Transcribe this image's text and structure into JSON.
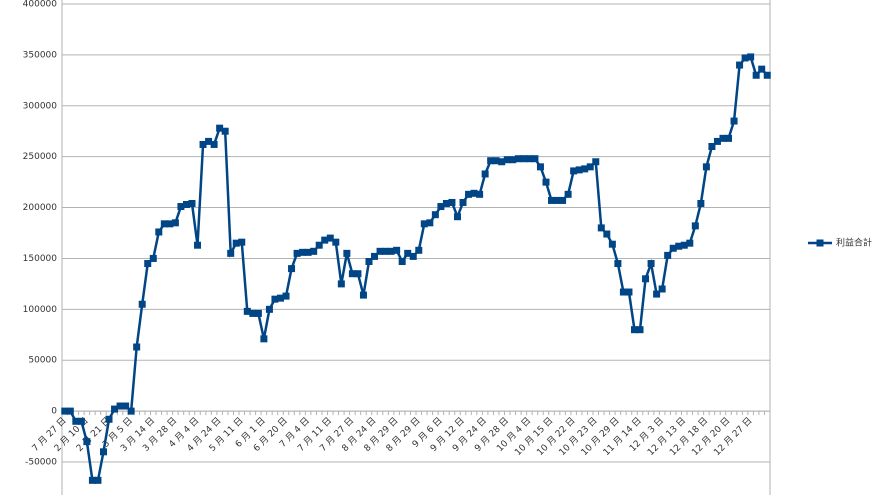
{
  "chart_data": {
    "type": "line",
    "categories": [
      "7 月 27 日",
      null,
      null,
      null,
      "2 月 10 日",
      null,
      null,
      null,
      "2 月 21 日",
      null,
      null,
      null,
      "3 月 5 日",
      null,
      null,
      null,
      "3 月 14 日",
      null,
      null,
      null,
      "3 月 28 日",
      null,
      null,
      null,
      "4 月 4 日",
      null,
      null,
      null,
      "4 月 24 日",
      null,
      null,
      null,
      "5 月 11 日",
      null,
      null,
      null,
      "6 月 1 日",
      null,
      null,
      null,
      "6 月 20 日",
      null,
      null,
      null,
      "7 月 4 日",
      null,
      null,
      null,
      "7 月 11 日",
      null,
      null,
      null,
      "7 月 27 日",
      null,
      null,
      null,
      "8 月 24 日",
      null,
      null,
      null,
      "8 月 29 日",
      null,
      null,
      null,
      "8 月 29 日",
      null,
      null,
      null,
      "9 月 6 日",
      null,
      null,
      null,
      "9 月 12 日",
      null,
      null,
      null,
      "9 月 24 日",
      null,
      null,
      null,
      "9 月 28 日",
      null,
      null,
      null,
      "10 月 4 日",
      null,
      null,
      null,
      "10 月 15 日",
      null,
      null,
      null,
      "10 月 22 日",
      null,
      null,
      null,
      "10 月 23 日",
      null,
      null,
      null,
      "10 月 29 日",
      null,
      null,
      null,
      "11 月 14 日",
      null,
      null,
      null,
      "12 月 3 日",
      null,
      null,
      null,
      "12 月 13 日",
      null,
      null,
      null,
      "12 月 18 日",
      null,
      null,
      null,
      "12 月 20 日",
      null,
      null,
      null,
      "12 月 27 日",
      null,
      null,
      null
    ],
    "series": [
      {
        "name": "利益合計",
        "color": "#004586",
        "values": [
          0,
          0,
          -10000,
          -10000,
          -30000,
          -68000,
          -68000,
          -40000,
          -8000,
          2000,
          5000,
          5000,
          0,
          63000,
          105000,
          145000,
          150000,
          176000,
          184000,
          184000,
          185000,
          201000,
          203000,
          204000,
          163000,
          262000,
          265000,
          262000,
          278000,
          275000,
          155000,
          165000,
          166000,
          98000,
          96000,
          96000,
          71000,
          100000,
          110000,
          111000,
          113000,
          140000,
          155000,
          156000,
          156000,
          157000,
          163000,
          168000,
          170000,
          166000,
          125000,
          155000,
          135000,
          135000,
          114000,
          147000,
          152000,
          157000,
          157000,
          157000,
          158000,
          147000,
          155000,
          152000,
          158000,
          184000,
          185000,
          193000,
          201000,
          204000,
          205000,
          191000,
          205000,
          213000,
          214000,
          213000,
          233000,
          246000,
          246000,
          245000,
          247000,
          247000,
          248000,
          248000,
          248000,
          248000,
          240000,
          225000,
          207000,
          207000,
          207000,
          213000,
          236000,
          237000,
          238000,
          240000,
          245000,
          180000,
          174000,
          164000,
          145000,
          117000,
          117000,
          80000,
          80000,
          130000,
          145000,
          115000,
          120000,
          153000,
          160000,
          162000,
          163000,
          165000,
          182000,
          204000,
          240000,
          260000,
          265000,
          268000,
          268000,
          285000,
          340000,
          347000,
          348000,
          330000,
          336000,
          330000
        ]
      }
    ],
    "ylim": [
      -50000,
      400000
    ],
    "yticks": [
      -50000,
      0,
      50000,
      100000,
      150000,
      200000,
      250000,
      300000,
      350000,
      400000
    ],
    "grid": true,
    "legend": "right"
  }
}
